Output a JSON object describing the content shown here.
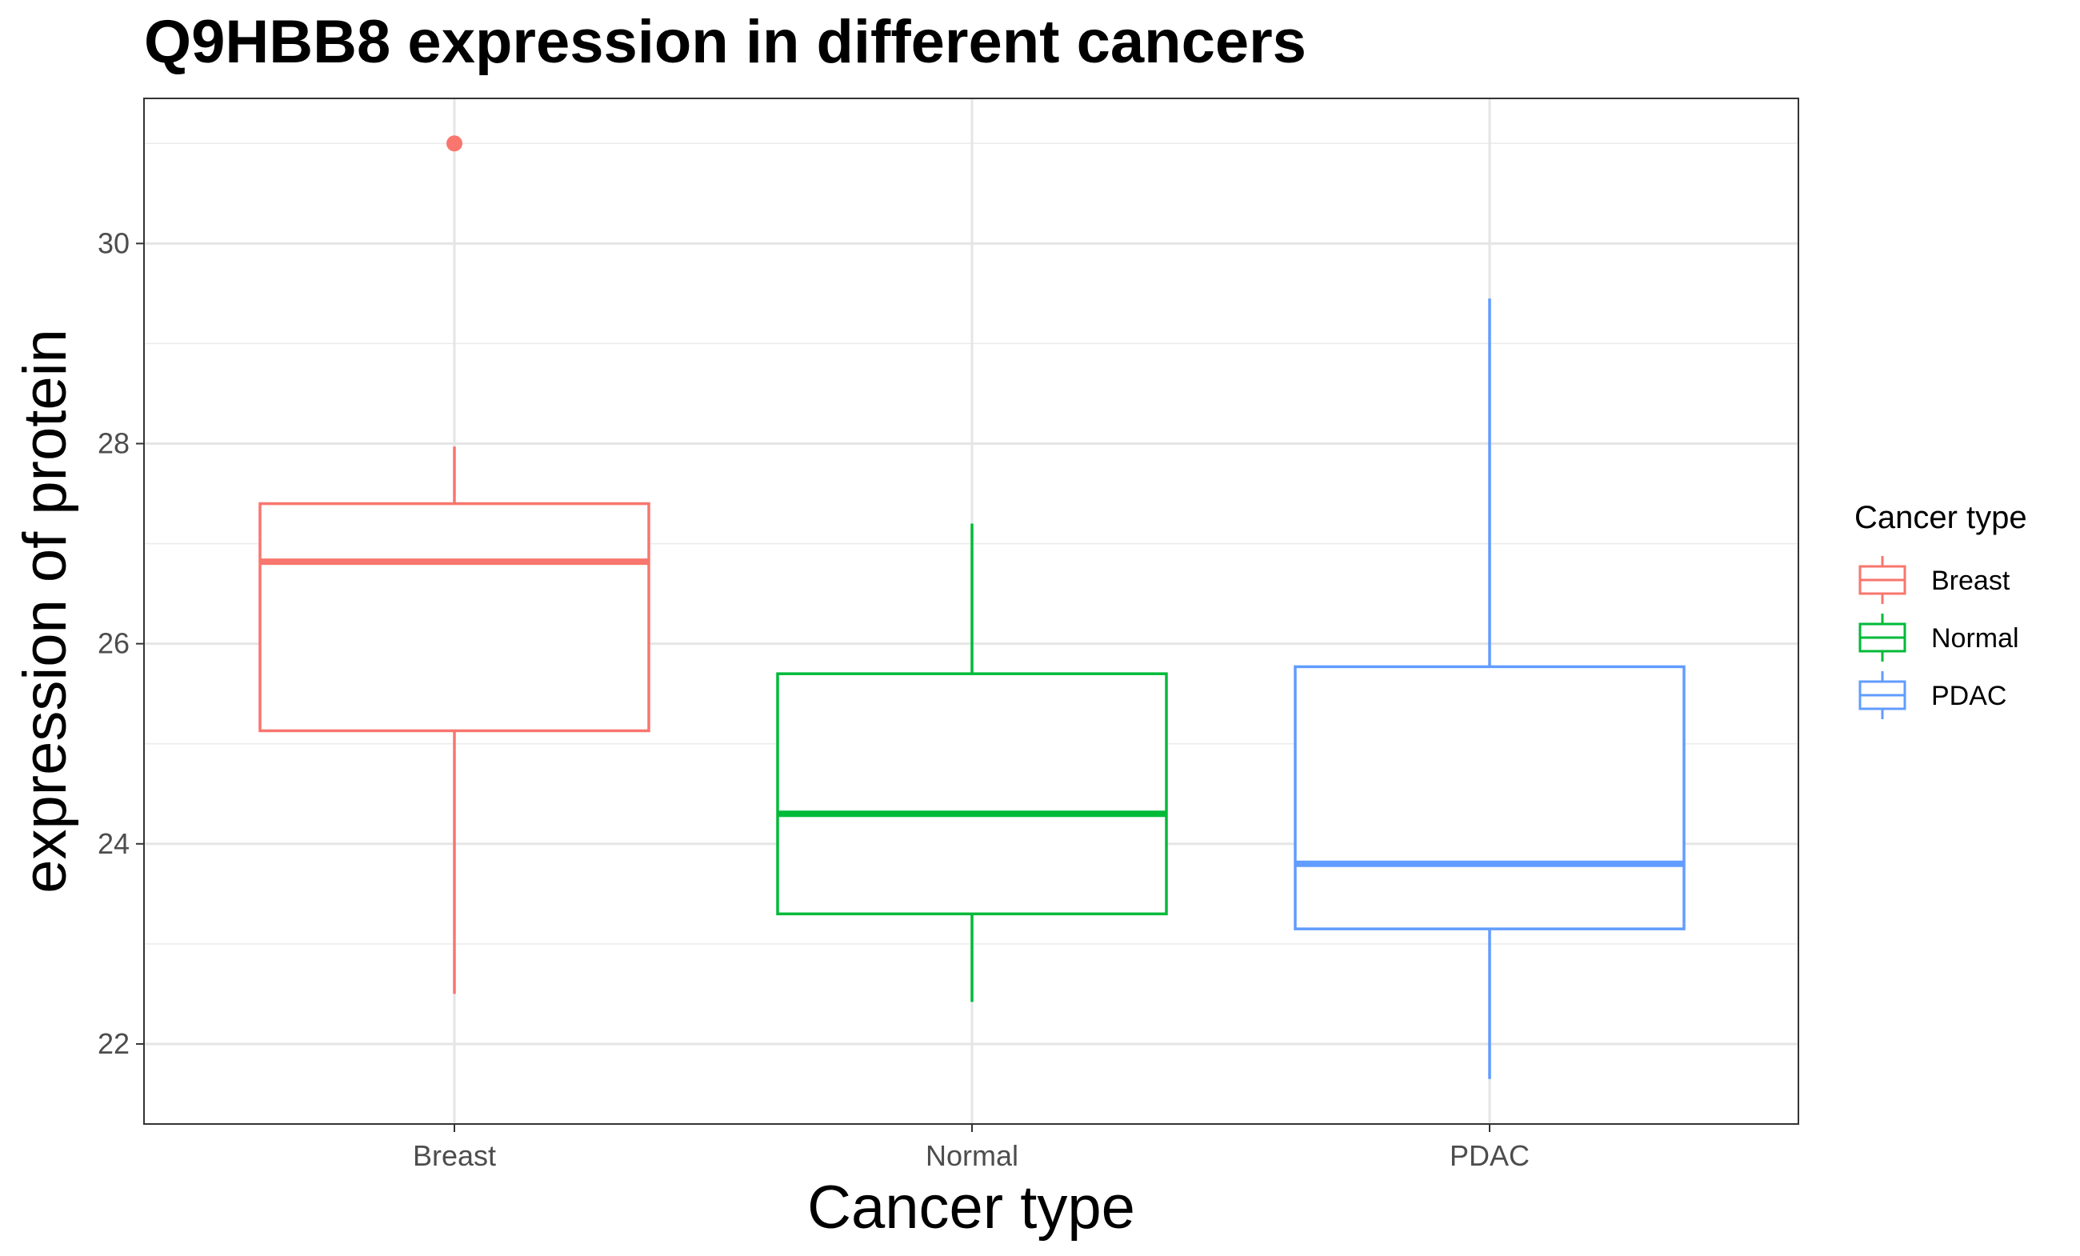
{
  "chart_data": {
    "type": "boxplot",
    "title": "Q9HBB8 expression in different cancers",
    "xlabel": "Cancer type",
    "ylabel": "expression of protein",
    "ylim": [
      21.2,
      31.45
    ],
    "yticks": [
      22,
      24,
      26,
      28,
      30
    ],
    "grid": true,
    "legend": {
      "title": "Cancer type",
      "position": "right"
    },
    "categories": [
      "Breast",
      "Normal",
      "PDAC"
    ],
    "series": [
      {
        "name": "Breast",
        "color": "#F8766D",
        "whisker_low": 22.5,
        "q1": 25.13,
        "median": 26.82,
        "q3": 27.4,
        "whisker_high": 27.97,
        "outliers": [
          31.0
        ]
      },
      {
        "name": "Normal",
        "color": "#00BA38",
        "whisker_low": 22.42,
        "q1": 23.3,
        "median": 24.3,
        "q3": 25.7,
        "whisker_high": 27.2,
        "outliers": []
      },
      {
        "name": "PDAC",
        "color": "#619CFF",
        "whisker_low": 21.65,
        "q1": 23.15,
        "median": 23.8,
        "q3": 25.77,
        "whisker_high": 29.45,
        "outliers": []
      }
    ]
  }
}
